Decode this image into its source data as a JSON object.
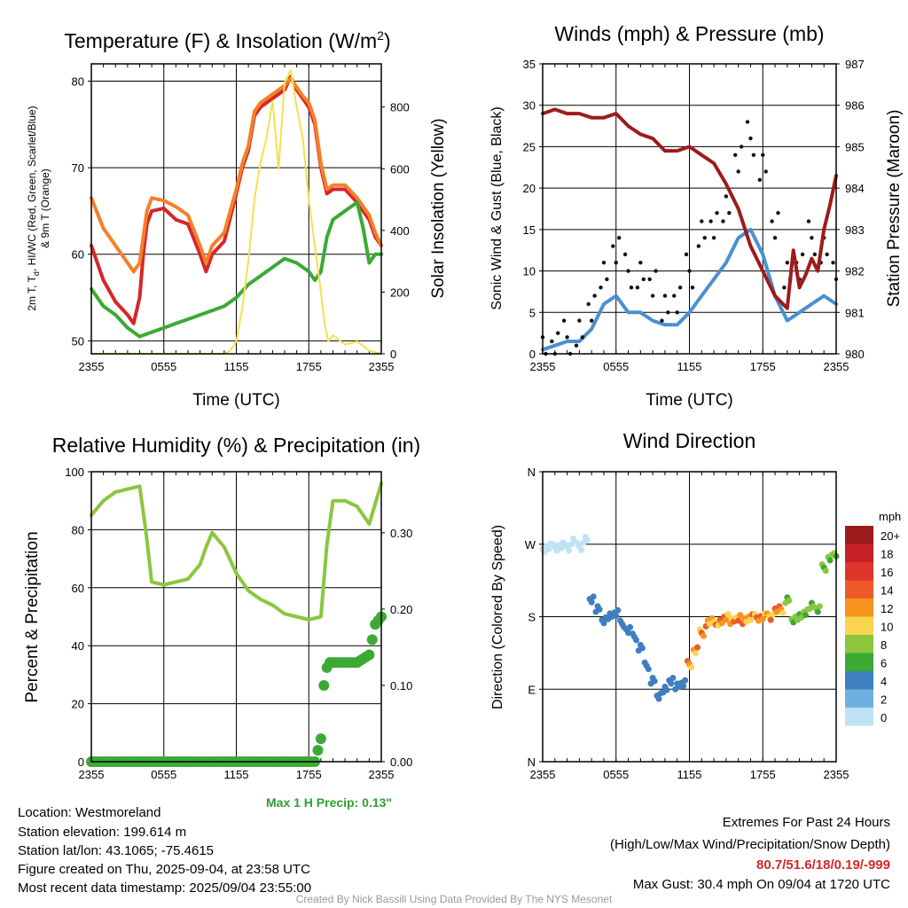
{
  "chart_data": [
    {
      "type": "line",
      "title": "Temperature (F) & Insolation (W/m",
      "title_sup": "2",
      "title_close": ")",
      "xlabel": "Time (UTC)",
      "ylabel_left": "2m T, Td, HI/WC (Red, Green, Scarlet/Blue) & 9m T (Orange)",
      "ylabel_left_line1": "2m T, T",
      "ylabel_left_sub": "d",
      "ylabel_left_line1b": ", HI/WC (Red, Green, Scarlet/Blue)",
      "ylabel_left_line2": "& 9m T (Orange)",
      "ylabel_right": "Solar Insolation (Yellow)",
      "x_ticks": [
        "2355",
        "0555",
        "1155",
        "1755",
        "2355"
      ],
      "y_ticks_left": [
        "50",
        "60",
        "70",
        "80"
      ],
      "y_ticks_right": [
        "0",
        "200",
        "400",
        "600",
        "800"
      ],
      "ylim_left": [
        48.5,
        82
      ],
      "ylim_right": [
        0,
        940
      ],
      "grid": true,
      "series": [
        {
          "name": "2m T",
          "color": "#d62728",
          "x": [
            0,
            1,
            2,
            3,
            3.5,
            4,
            4.3,
            4.6,
            5,
            6,
            7,
            8,
            9,
            9.5,
            10,
            11,
            12,
            12.5,
            13,
            13.5,
            14,
            15,
            16,
            16.5,
            17,
            17.5,
            18,
            18.5,
            19,
            19.5,
            20,
            21,
            22,
            23,
            23.5,
            24
          ],
          "y": [
            61,
            57,
            54.5,
            53,
            52,
            55,
            60,
            63.5,
            65,
            65.3,
            64,
            63.5,
            60,
            58,
            60,
            61.5,
            67,
            70,
            72,
            76,
            77,
            78,
            79,
            80.5,
            79,
            78,
            77,
            75,
            70,
            67,
            67.5,
            67.5,
            66,
            64,
            62,
            61
          ]
        },
        {
          "name": "9m T",
          "color": "#f57f2a",
          "x": [
            0,
            1,
            2,
            3,
            3.5,
            4,
            4.3,
            4.6,
            5,
            6,
            7,
            8,
            9,
            9.5,
            10,
            11,
            12,
            12.5,
            13,
            13.5,
            14,
            15,
            16,
            16.5,
            17,
            17.5,
            18,
            18.5,
            19,
            19.5,
            20,
            21,
            22,
            23,
            23.5,
            24
          ],
          "y": [
            66.5,
            63,
            61,
            59,
            58,
            59,
            62,
            65,
            66.5,
            66.2,
            65.5,
            64.5,
            61,
            59,
            61,
            62.5,
            67.5,
            70.5,
            72.5,
            76.5,
            77.5,
            78.5,
            79.5,
            80.3,
            79.3,
            78.3,
            77.5,
            75.5,
            70.5,
            67.5,
            68,
            68,
            66.5,
            64.5,
            62.5,
            61
          ]
        },
        {
          "name": "Td",
          "color": "#3aaa35",
          "x": [
            0,
            1,
            2,
            3,
            4,
            5,
            6,
            7,
            8,
            9,
            10,
            11,
            12,
            13,
            14,
            15,
            16,
            17,
            18,
            18.5,
            19,
            19.5,
            20,
            21,
            22,
            22.5,
            23,
            23.5,
            24
          ],
          "y": [
            56,
            54,
            53,
            51.5,
            50.5,
            51,
            51.5,
            52,
            52.5,
            53,
            53.5,
            54,
            55,
            56.5,
            57.5,
            58.5,
            59.5,
            59,
            58,
            57,
            58,
            62,
            64,
            65,
            66,
            63,
            59,
            60,
            60
          ]
        },
        {
          "name": "Solar Insolation",
          "color": "#f5e04f",
          "x": [
            0,
            6,
            8,
            9,
            10,
            11,
            11.5,
            12,
            12.5,
            13,
            13.5,
            14,
            14.5,
            15,
            15.5,
            16,
            16.5,
            17,
            17.5,
            18,
            18.5,
            19,
            19.3,
            19.6,
            20,
            21,
            22,
            23,
            24
          ],
          "y": [
            0,
            0,
            0,
            0,
            0,
            0,
            10,
            40,
            150,
            300,
            500,
            620,
            700,
            820,
            600,
            880,
            920,
            800,
            700,
            500,
            350,
            200,
            100,
            40,
            60,
            30,
            40,
            10,
            0
          ]
        }
      ]
    },
    {
      "type": "line",
      "title": "Winds (mph) & Pressure (mb)",
      "xlabel": "Time (UTC)",
      "ylabel_left": "Sonic Wind & Gust (Blue, Black)",
      "ylabel_right": "Station Pressure (Maroon)",
      "x_ticks": [
        "2355",
        "0555",
        "1155",
        "1755",
        "2355"
      ],
      "y_ticks_left": [
        "0",
        "5",
        "10",
        "15",
        "20",
        "25",
        "30",
        "35"
      ],
      "y_ticks_right": [
        "980",
        "981",
        "982",
        "983",
        "984",
        "985",
        "986",
        "987"
      ],
      "ylim_left": [
        0,
        35
      ],
      "ylim_right": [
        980,
        987
      ],
      "grid": true,
      "series": [
        {
          "name": "Sonic Wind",
          "color": "#4a90d0",
          "x": [
            0,
            1,
            2,
            3,
            4,
            5,
            6,
            7,
            8,
            9,
            10,
            11,
            12,
            13,
            14,
            15,
            16,
            17,
            18,
            19,
            20,
            21,
            22,
            23,
            24
          ],
          "y": [
            0.5,
            1,
            1.5,
            1.5,
            3,
            6,
            7,
            5,
            5,
            4,
            3.5,
            3.5,
            5,
            7,
            9,
            11,
            14,
            15,
            12,
            7,
            4,
            5,
            6,
            7,
            6
          ]
        },
        {
          "name": "Gust",
          "color": "#111111",
          "x": [
            0,
            1,
            2,
            3,
            4,
            5,
            6,
            7,
            8,
            9,
            10,
            11,
            12,
            13,
            14,
            15,
            16,
            17,
            18,
            19,
            20,
            21,
            22,
            23,
            24
          ],
          "y": [
            1,
            1.5,
            2,
            2,
            5,
            10,
            13,
            10,
            9,
            8,
            6,
            7,
            10,
            14,
            15,
            18,
            24,
            26,
            22,
            15,
            10,
            11,
            14,
            12,
            10
          ]
        },
        {
          "name": "Station Pressure",
          "color": "#9e1b1b",
          "x": [
            0,
            1,
            2,
            3,
            4,
            5,
            6,
            7,
            8,
            9,
            10,
            11,
            12,
            13,
            14,
            15,
            16,
            17,
            18,
            19,
            20,
            20.5,
            21,
            21.5,
            22,
            22.5,
            23,
            23.5,
            24
          ],
          "y": [
            985.8,
            985.9,
            985.8,
            985.8,
            985.7,
            985.7,
            985.8,
            985.5,
            985.3,
            985.2,
            984.9,
            984.9,
            985.0,
            984.8,
            984.6,
            984.1,
            983.5,
            982.6,
            982.0,
            981.4,
            981.1,
            982.5,
            981.6,
            981.9,
            982.3,
            982.0,
            983.0,
            983.6,
            984.3
          ]
        }
      ]
    },
    {
      "type": "line",
      "title": "Relative Humidity (%) & Precipitation (in)",
      "ylabel_left": "Percent & Precipitation",
      "x_ticks": [
        "2355",
        "0555",
        "1155",
        "1755",
        "2355"
      ],
      "y_ticks_left": [
        "0",
        "20",
        "40",
        "60",
        "80",
        "100"
      ],
      "y_ticks_right": [
        "0.00",
        "0.10",
        "0.20",
        "0.30"
      ],
      "ylim_left": [
        0,
        100
      ],
      "ylim_right": [
        0,
        0.38
      ],
      "grid": true,
      "annotation": "Max 1 H Precip: 0.13\"",
      "series": [
        {
          "name": "Relative Humidity",
          "color": "#8cc63f",
          "x": [
            0,
            1,
            2,
            3,
            4,
            4.5,
            5,
            6,
            7,
            8,
            9,
            9.5,
            10,
            11,
            12,
            13,
            14,
            15,
            16,
            17,
            18,
            19,
            19.5,
            20,
            21,
            22,
            23,
            24
          ],
          "y": [
            85,
            90,
            93,
            94,
            95,
            80,
            62,
            61,
            62,
            63,
            68,
            74,
            79,
            74,
            65,
            59,
            56,
            54,
            51,
            50,
            49,
            50,
            75,
            90,
            90,
            88,
            82,
            96
          ]
        },
        {
          "name": "Precipitation",
          "color": "#3aaa35",
          "x": [
            0,
            18.5,
            19,
            19.1,
            19.3,
            19.6,
            20,
            22,
            23,
            23.5,
            24
          ],
          "y": [
            0,
            0,
            0.03,
            0.07,
            0.11,
            0.13,
            0.13,
            0.13,
            0.14,
            0.18,
            0.19
          ]
        }
      ]
    },
    {
      "type": "scatter",
      "title": "Wind Direction",
      "ylabel_left": "Direction (Colored By Speed)",
      "x_ticks": [
        "2355",
        "0555",
        "1155",
        "1755",
        "2355"
      ],
      "y_ticks_left": [
        "N",
        "E",
        "S",
        "W",
        "N"
      ],
      "ylim_left": [
        0,
        360
      ],
      "grid": true,
      "legend_title": "mph",
      "legend_labels": [
        "20+",
        "18",
        "16",
        "14",
        "12",
        "10",
        "8",
        "6",
        "4",
        "2",
        "0"
      ],
      "legend_colors": [
        "#9e1b1b",
        "#c62128",
        "#e0352b",
        "#f05a28",
        "#f7941d",
        "#f9d44f",
        "#8cc63f",
        "#3aaa35",
        "#3d7fbf",
        "#6fb0e0",
        "#bfe3f5"
      ],
      "series": [
        {
          "name": "direction",
          "x": [
            0,
            0.5,
            1,
            1.5,
            2,
            2.5,
            3,
            3.5,
            4,
            4.5,
            5,
            5.5,
            6,
            6.5,
            7,
            7.5,
            8,
            8.5,
            9,
            9.5,
            10,
            10.5,
            11,
            11.5,
            12,
            12.5,
            13,
            13.5,
            14,
            14.5,
            15,
            15.5,
            16,
            16.5,
            17,
            17.5,
            18,
            18.5,
            19,
            19.5,
            20,
            20.5,
            21,
            21.5,
            22,
            22.5,
            23,
            23.5,
            24
          ],
          "y": [
            262,
            268,
            265,
            270,
            266,
            272,
            268,
            275,
            200,
            190,
            175,
            182,
            185,
            170,
            165,
            155,
            140,
            120,
            100,
            80,
            90,
            100,
            95,
            98,
            120,
            140,
            160,
            170,
            175,
            172,
            178,
            175,
            178,
            176,
            180,
            178,
            182,
            180,
            185,
            190,
            200,
            175,
            180,
            185,
            195,
            190,
            240,
            255,
            255
          ]
        }
      ]
    }
  ],
  "info": {
    "location": "Location: Westmoreland",
    "elevation": "Station elevation: 199.614 m",
    "latlon": "Station lat/lon: 43.1065; -75.4615",
    "created": "Figure created on Thu, 2025-09-04, at 23:58 UTC",
    "recent": "Most recent data timestamp: 2025/09/04 23:55:00"
  },
  "extremes": {
    "title": "Extremes For Past 24 Hours",
    "subtitle": "(High/Low/Max Wind/Precipitation/Snow Depth)",
    "values": "80.7/51.6/18/0.19/-999",
    "gust": "Max Gust: 30.4 mph On 09/04 at 1720 UTC"
  },
  "credit": "Created By Nick Bassill Using Data Provided By The NYS Mesonet"
}
